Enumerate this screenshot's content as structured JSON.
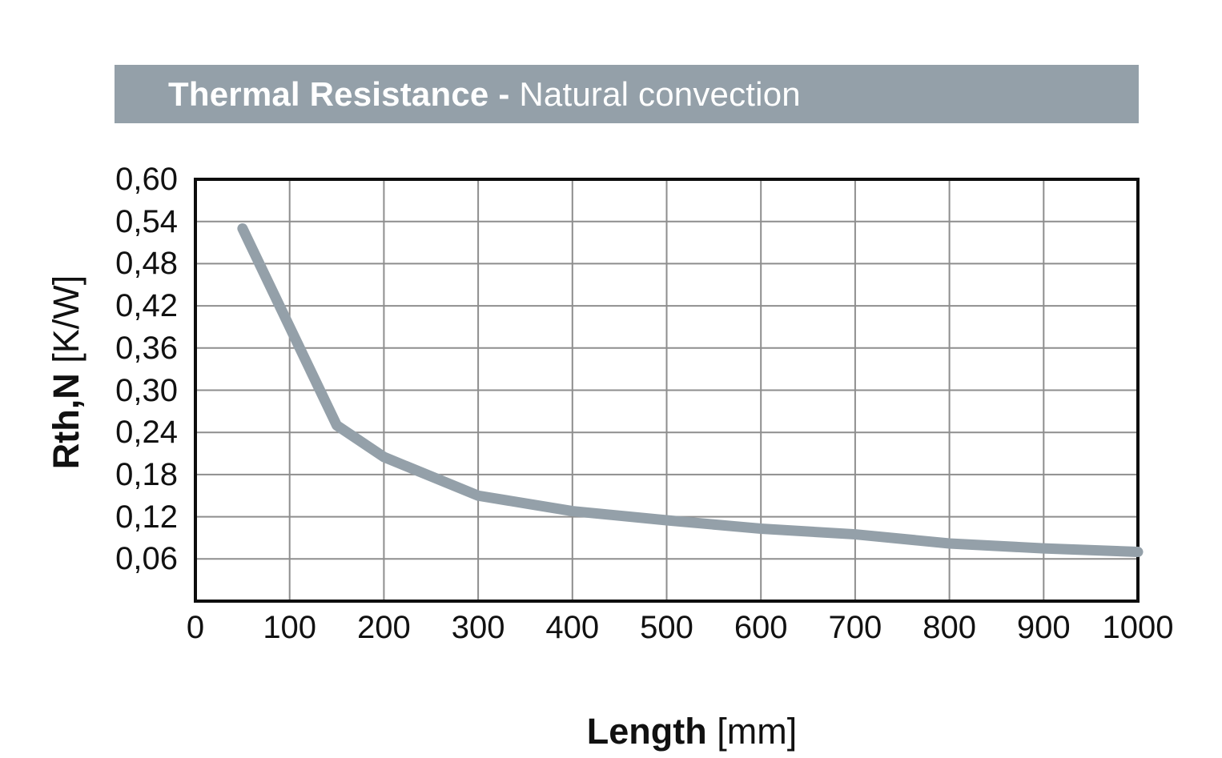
{
  "banner": {
    "title_bold": "Thermal Resistance - ",
    "title_regular": "Natural convection"
  },
  "axes": {
    "x_title_bold": "Length ",
    "x_title_unit": "[mm]",
    "y_title_bold": "Rth,N ",
    "y_title_unit": "[K/W]"
  },
  "chart_data": {
    "type": "line",
    "title": "Thermal Resistance - Natural convection",
    "xlabel": "Length [mm]",
    "ylabel": "Rth,N [K/W]",
    "xlim": [
      0,
      1000
    ],
    "ylim": [
      0,
      0.6
    ],
    "grid": true,
    "legend_position": "none",
    "x_tick_values": [
      0,
      100,
      200,
      300,
      400,
      500,
      600,
      700,
      800,
      900,
      1000
    ],
    "x_tick_labels": [
      "0",
      "100",
      "200",
      "300",
      "400",
      "500",
      "600",
      "700",
      "800",
      "900",
      "1000"
    ],
    "y_tick_values": [
      0.6,
      0.54,
      0.48,
      0.42,
      0.36,
      0.3,
      0.24,
      0.18,
      0.12,
      0.06
    ],
    "y_tick_labels": [
      "0,60",
      "0,54",
      "0,48",
      "0,42",
      "0,36",
      "0,30",
      "0,24",
      "0,18",
      "0,12",
      "0,06"
    ],
    "series": [
      {
        "name": "Rth,N",
        "color": "#94a0a9",
        "x": [
          50,
          150,
          200,
          300,
          400,
          500,
          600,
          700,
          800,
          900,
          1000
        ],
        "y": [
          0.53,
          0.25,
          0.205,
          0.15,
          0.128,
          0.115,
          0.103,
          0.095,
          0.082,
          0.075,
          0.07
        ]
      }
    ]
  },
  "colors": {
    "banner_bg": "#94a0a9",
    "banner_text": "#ffffff",
    "curve": "#94a0a9",
    "grid": "#8e8e8e",
    "frame": "#0d0d0d",
    "text": "#111111"
  }
}
